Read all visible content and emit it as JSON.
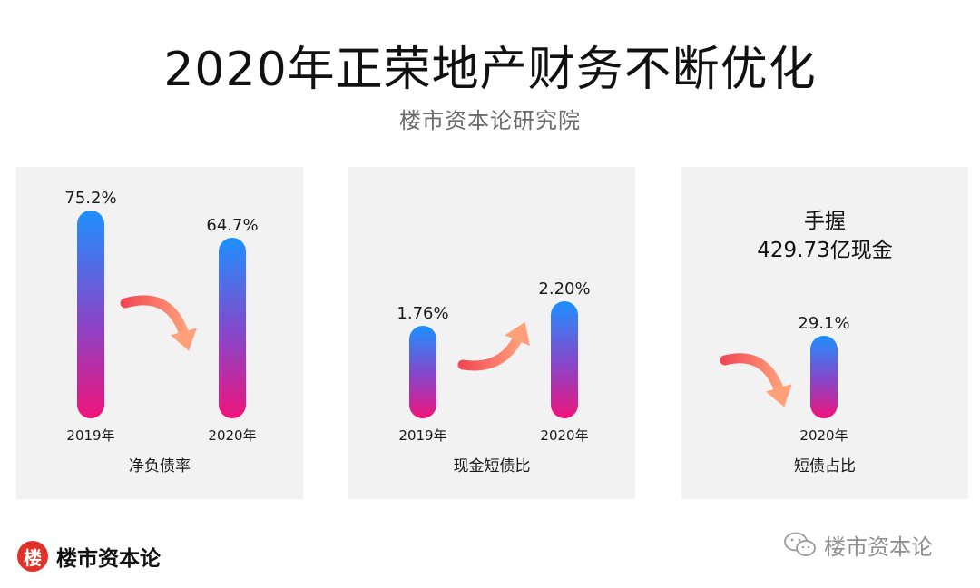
{
  "header": {
    "title": "2020年正荣地产财务不断优化",
    "subtitle": "楼市资本论研究院"
  },
  "chart_data": [
    {
      "type": "bar",
      "title": "净负债率",
      "categories": [
        "2019年",
        "2020年"
      ],
      "values": [
        75.2,
        64.7
      ],
      "value_labels": [
        "75.2%",
        "64.7%"
      ],
      "unit": "%",
      "ylim": [
        0,
        80
      ],
      "trend": "down",
      "colors": {
        "top": "#1E90FF",
        "bottom": "#F0147A"
      }
    },
    {
      "type": "bar",
      "title": "现金短债比",
      "categories": [
        "2019年",
        "2020年"
      ],
      "values": [
        1.76,
        2.2
      ],
      "value_labels": [
        "1.76%",
        "2.20%"
      ],
      "unit": "%",
      "trend": "up",
      "colors": {
        "top": "#1E90FF",
        "bottom": "#F0147A"
      }
    },
    {
      "type": "bar",
      "title": "短债占比",
      "categories": [
        "2020年"
      ],
      "values": [
        29.1
      ],
      "value_labels": [
        "29.1%"
      ],
      "unit": "%",
      "trend": "down",
      "note": [
        "手握",
        "429.73亿现金"
      ],
      "colors": {
        "top": "#1E90FF",
        "bottom": "#F0147A"
      }
    }
  ],
  "footer": {
    "logo_char": "楼",
    "logo_text": "楼市资本论",
    "watermark_text": "楼市资本论",
    "watermark_icon": "wechat-icon"
  },
  "colors": {
    "panel_bg": "#F2F2F2",
    "arrow_light": "#FFA07A",
    "arrow_dark": "#F24A55",
    "brand_red": "#E0312A"
  }
}
